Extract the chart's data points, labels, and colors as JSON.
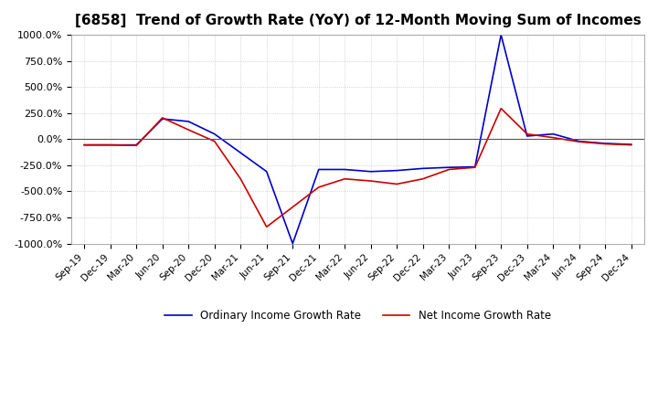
{
  "title": "[6858]  Trend of Growth Rate (YoY) of 12-Month Moving Sum of Incomes",
  "title_fontsize": 11,
  "ylim": [
    -1000,
    1000
  ],
  "yticks": [
    -1000,
    -750,
    -500,
    -250,
    0,
    250,
    500,
    750,
    1000
  ],
  "background_color": "#ffffff",
  "grid_color": "#bbbbbb",
  "ordinary_color": "#0000cc",
  "net_color": "#cc0000",
  "legend_ordinary": "Ordinary Income Growth Rate",
  "legend_net": "Net Income Growth Rate",
  "dates": [
    "Sep-19",
    "Dec-19",
    "Mar-20",
    "Jun-20",
    "Sep-20",
    "Dec-20",
    "Mar-21",
    "Jun-21",
    "Sep-21",
    "Dec-21",
    "Mar-22",
    "Jun-22",
    "Sep-22",
    "Dec-22",
    "Mar-23",
    "Jun-23",
    "Sep-23",
    "Dec-23",
    "Mar-24",
    "Jun-24",
    "Sep-24",
    "Dec-24"
  ],
  "ordinary_values": [
    -55,
    -55,
    -55,
    195,
    170,
    50,
    -130,
    -310,
    -1000,
    -290,
    -290,
    -310,
    -300,
    -280,
    -270,
    -265,
    1000,
    30,
    50,
    -20,
    -40,
    -50
  ],
  "net_values": [
    -55,
    -55,
    -60,
    205,
    90,
    -20,
    -380,
    -840,
    -650,
    -460,
    -380,
    -400,
    -430,
    -380,
    -290,
    -270,
    295,
    50,
    15,
    -25,
    -45,
    -55
  ]
}
